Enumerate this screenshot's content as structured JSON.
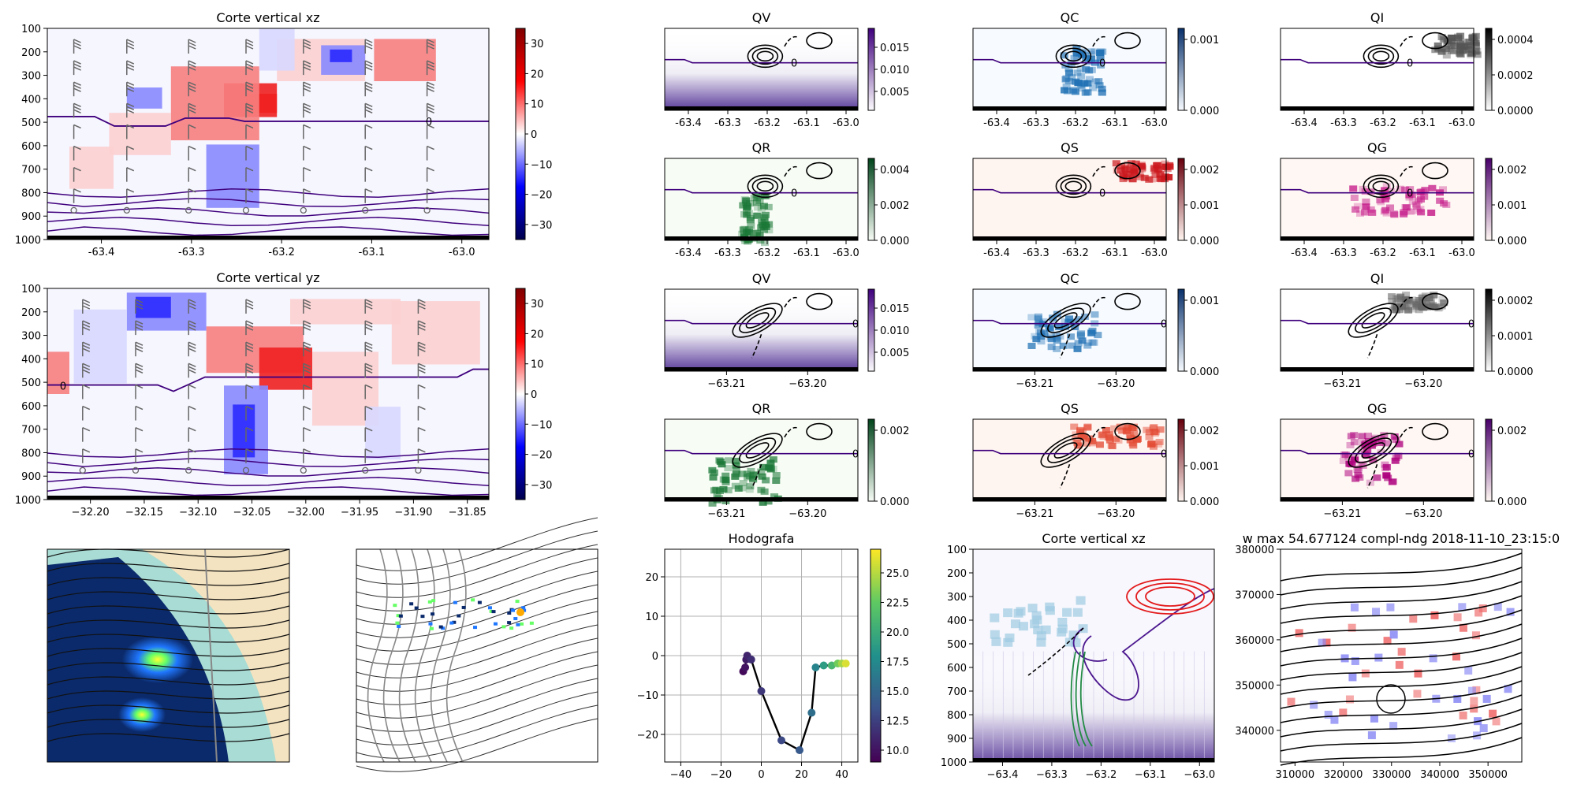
{
  "chart_data": [
    {
      "id": "xz_top",
      "type": "heatmap",
      "title": "Corte vertical xz",
      "xticks": [
        "-63.4",
        "-63.3",
        "-63.2",
        "-63.1",
        "-63.0"
      ],
      "xlim": [
        -63.46,
        -62.97
      ],
      "yticks": [
        "100",
        "200",
        "300",
        "400",
        "500",
        "600",
        "700",
        "800",
        "900",
        "1000"
      ],
      "ylim": [
        1000,
        100
      ],
      "colorbar": {
        "ticks": [
          "30",
          "20",
          "10",
          "0",
          "−10",
          "−20",
          "−30"
        ],
        "range": [
          -35,
          35
        ],
        "cmap": "seismic"
      },
      "contour_label": "0"
    },
    {
      "id": "yz_top",
      "type": "heatmap",
      "title": "Corte vertical yz",
      "xticks": [
        "−32.20",
        "−32.15",
        "−32.10",
        "−32.05",
        "−32.00",
        "−31.95",
        "−31.90",
        "−31.85"
      ],
      "xlim": [
        -32.24,
        -31.83
      ],
      "yticks": [
        "100",
        "200",
        "300",
        "400",
        "500",
        "600",
        "700",
        "800",
        "900",
        "1000"
      ],
      "ylim": [
        1000,
        100
      ],
      "colorbar": {
        "ticks": [
          "30",
          "20",
          "10",
          "0",
          "−10",
          "−20",
          "−30"
        ],
        "range": [
          -35,
          35
        ],
        "cmap": "seismic"
      },
      "contour_label": "0"
    },
    {
      "id": "qv1",
      "type": "heatmap",
      "title": "QV",
      "xticks": [
        "-63.4",
        "-63.3",
        "-63.2",
        "-63.1",
        "-63.0"
      ],
      "xlim": [
        -63.46,
        -62.97
      ],
      "colorbar": {
        "ticks": [
          "0.015",
          "0.010",
          "0.005"
        ],
        "cmap": "purples"
      },
      "contour_label": "0"
    },
    {
      "id": "qc1",
      "type": "heatmap",
      "title": "QC",
      "xticks": [
        "-63.4",
        "-63.3",
        "-63.2",
        "-63.1",
        "-63.0"
      ],
      "xlim": [
        -63.46,
        -62.97
      ],
      "colorbar": {
        "ticks": [
          "0.001",
          "0.000"
        ],
        "cmap": "blues"
      },
      "contour_label": "0"
    },
    {
      "id": "qi1",
      "type": "heatmap",
      "title": "QI",
      "xticks": [
        "-63.4",
        "-63.3",
        "-63.2",
        "-63.1",
        "-63.0"
      ],
      "xlim": [
        -63.46,
        -62.97
      ],
      "colorbar": {
        "ticks": [
          "0.0004",
          "0.0002",
          "0.0000"
        ],
        "cmap": "greys"
      },
      "contour_label": "0"
    },
    {
      "id": "qr1",
      "type": "heatmap",
      "title": "QR",
      "xticks": [
        "-63.4",
        "-63.3",
        "-63.2",
        "-63.1",
        "-63.0"
      ],
      "xlim": [
        -63.46,
        -62.97
      ],
      "colorbar": {
        "ticks": [
          "0.004",
          "0.002",
          "0.000"
        ],
        "cmap": "greens"
      },
      "contour_label": "0"
    },
    {
      "id": "qs1",
      "type": "heatmap",
      "title": "QS",
      "xticks": [
        "-63.4",
        "-63.3",
        "-63.2",
        "-63.1",
        "-63.0"
      ],
      "xlim": [
        -63.46,
        -62.97
      ],
      "colorbar": {
        "ticks": [
          "0.002",
          "0.001",
          "0.000"
        ],
        "cmap": "reds"
      },
      "contour_label": "0"
    },
    {
      "id": "qg1",
      "type": "heatmap",
      "title": "QG",
      "xticks": [
        "-63.4",
        "-63.3",
        "-63.2",
        "-63.1",
        "-63.0"
      ],
      "xlim": [
        -63.46,
        -62.97
      ],
      "colorbar": {
        "ticks": [
          "0.002",
          "0.001",
          "0.000"
        ],
        "cmap": "rdpu"
      },
      "contour_label": "0"
    },
    {
      "id": "qv2",
      "type": "heatmap",
      "title": "QV",
      "xticks": [
        "−63.21",
        "−63.20"
      ],
      "colorbar": {
        "ticks": [
          "0.015",
          "0.010",
          "0.005"
        ],
        "cmap": "purples"
      },
      "contour_label": "0"
    },
    {
      "id": "qc2",
      "type": "heatmap",
      "title": "QC",
      "xticks": [
        "−63.21",
        "−63.20"
      ],
      "colorbar": {
        "ticks": [
          "0.001",
          "0.000"
        ],
        "cmap": "blues"
      },
      "contour_label": "0"
    },
    {
      "id": "qi2",
      "type": "heatmap",
      "title": "QI",
      "xticks": [
        "−63.21",
        "−63.20"
      ],
      "colorbar": {
        "ticks": [
          "0.0002",
          "0.0001",
          "0.0000"
        ],
        "cmap": "greys"
      },
      "contour_label": "0"
    },
    {
      "id": "qr2",
      "type": "heatmap",
      "title": "QR",
      "xticks": [
        "−63.21",
        "−63.20"
      ],
      "colorbar": {
        "ticks": [
          "0.002",
          "0.000"
        ],
        "cmap": "greens"
      },
      "contour_label": "0"
    },
    {
      "id": "qs2",
      "type": "heatmap",
      "title": "QS",
      "xticks": [
        "−63.21",
        "−63.20"
      ],
      "colorbar": {
        "ticks": [
          "0.002",
          "0.001",
          "0.000"
        ],
        "cmap": "reds"
      },
      "contour_label": "0"
    },
    {
      "id": "qg2",
      "type": "heatmap",
      "title": "QG",
      "xticks": [
        "−63.21",
        "−63.20"
      ],
      "colorbar": {
        "ticks": [
          "0.002",
          "0.000"
        ],
        "cmap": "rdpu"
      },
      "contour_label": "0"
    },
    {
      "id": "map1",
      "type": "heatmap",
      "title": ""
    },
    {
      "id": "map2",
      "type": "heatmap",
      "title": ""
    },
    {
      "id": "hodo",
      "type": "scatter",
      "title": "Hodografa",
      "xticks": [
        "−40",
        "−20",
        "0",
        "20",
        "40"
      ],
      "yticks": [
        "20",
        "10",
        "0",
        "−10",
        "−20"
      ],
      "xlim": [
        -48,
        48
      ],
      "ylim": [
        -27,
        27
      ],
      "grid": true,
      "x": [
        -9,
        -8,
        -7.5,
        -7,
        -5,
        0,
        10,
        19,
        25,
        27,
        31,
        35,
        38,
        40,
        42
      ],
      "y": [
        -4,
        -3,
        -1,
        0,
        -1,
        -9,
        -21.5,
        -24,
        -14.5,
        -3,
        -2.5,
        -2.5,
        -2,
        -2,
        -2
      ],
      "c": [
        9.5,
        10,
        10.5,
        11,
        11.5,
        12,
        13,
        14,
        15.5,
        17,
        19,
        21,
        23,
        24.5,
        26
      ],
      "colorbar": {
        "ticks": [
          "25.0",
          "22.5",
          "20.0",
          "17.5",
          "15.0",
          "12.5",
          "10.0"
        ],
        "range": [
          9,
          27
        ],
        "cmap": "viridis"
      }
    },
    {
      "id": "xz_bottom",
      "type": "heatmap",
      "title": "Corte vertical xz",
      "xticks": [
        "−63.4",
        "−63.3",
        "−63.2",
        "−63.1",
        "−63.0"
      ],
      "xlim": [
        -63.46,
        -62.97
      ],
      "yticks": [
        "100",
        "200",
        "300",
        "400",
        "500",
        "600",
        "700",
        "800",
        "900",
        "1000"
      ],
      "ylim": [
        1000,
        100
      ]
    },
    {
      "id": "wmax",
      "type": "heatmap",
      "title": "w max 54.677124 compl-ndg 2018-11-10_23:15:0",
      "xticks": [
        "310000",
        "320000",
        "330000",
        "340000",
        "350000"
      ],
      "xlim": [
        307000,
        357000
      ],
      "yticks": [
        "380000",
        "370000",
        "360000",
        "350000",
        "340000"
      ],
      "ylim": [
        333000,
        380000
      ]
    }
  ]
}
